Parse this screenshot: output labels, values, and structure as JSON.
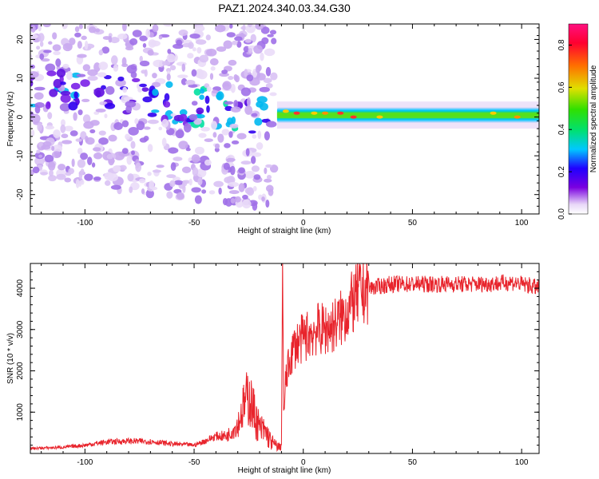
{
  "title": "PAZ1.2024.340.03.34.G30",
  "chart_data": [
    {
      "type": "heatmap",
      "xlabel": "Height of straight line (km)",
      "ylabel": "Frequency (Hz)",
      "xlim": [
        -125,
        108
      ],
      "ylim": [
        -25,
        24
      ],
      "xticks": [
        -100,
        -50,
        0,
        50,
        100
      ],
      "yticks": [
        -20,
        -10,
        0,
        10,
        20
      ],
      "xtick_labels": [
        "-100",
        "-50",
        "0",
        "50",
        "100"
      ],
      "ytick_labels": [
        "-20",
        "-10",
        "0",
        "10",
        "20"
      ],
      "colorbar": {
        "label": "Normalized spectral amplitude",
        "range": [
          0,
          0.9
        ],
        "ticks": [
          0,
          0.2,
          0.4,
          0.6,
          0.8
        ],
        "tick_labels": [
          "0.0",
          "0.2",
          "0.4",
          "0.6",
          "0.8"
        ]
      },
      "description_bands": [
        {
          "x_range": [
            -12,
            108
          ],
          "freq_center": 0.5,
          "freq_halfwidth": 1.5,
          "amplitude": 0.55
        },
        {
          "x_range": [
            -125,
            -15
          ],
          "freq_center_start": 8,
          "freq_center_end": 0,
          "freq_spread": 25,
          "amplitude": 0.1
        }
      ]
    },
    {
      "type": "line",
      "xlabel": "Height of straight line (km)",
      "ylabel": "SNR (10 * v/v)",
      "xlim": [
        -125,
        108
      ],
      "ylim": [
        0,
        4600
      ],
      "xticks": [
        -100,
        -50,
        0,
        50,
        100
      ],
      "yticks": [
        1000,
        2000,
        3000,
        4000
      ],
      "xtick_labels": [
        "-100",
        "-50",
        "0",
        "50",
        "100"
      ],
      "ytick_labels": [
        "1000",
        "2000",
        "3000",
        "4000"
      ],
      "color": "#e8242c",
      "series": [
        {
          "x": [
            -125,
            -110,
            -100,
            -90,
            -80,
            -70,
            -60,
            -55,
            -50,
            -45,
            -40,
            -35,
            -30,
            -27,
            -25,
            -22,
            -20,
            -17,
            -15,
            -13,
            -11,
            -10,
            -9.5,
            -9,
            -8,
            -6,
            -4,
            -2,
            0,
            3,
            6,
            10,
            14,
            18,
            22,
            26,
            30,
            35,
            40,
            50,
            60,
            70,
            80,
            90,
            95,
            100,
            105,
            108
          ],
          "y": [
            120,
            150,
            200,
            280,
            300,
            290,
            230,
            220,
            200,
            300,
            420,
            420,
            700,
            1200,
            1400,
            900,
            600,
            500,
            300,
            200,
            150,
            200,
            4600,
            900,
            1800,
            2300,
            2600,
            2700,
            2800,
            2900,
            3000,
            3000,
            3100,
            3300,
            3600,
            3900,
            4000,
            4050,
            4100,
            4100,
            4100,
            4100,
            4100,
            4120,
            4150,
            4100,
            4050,
            4000
          ]
        }
      ]
    }
  ]
}
